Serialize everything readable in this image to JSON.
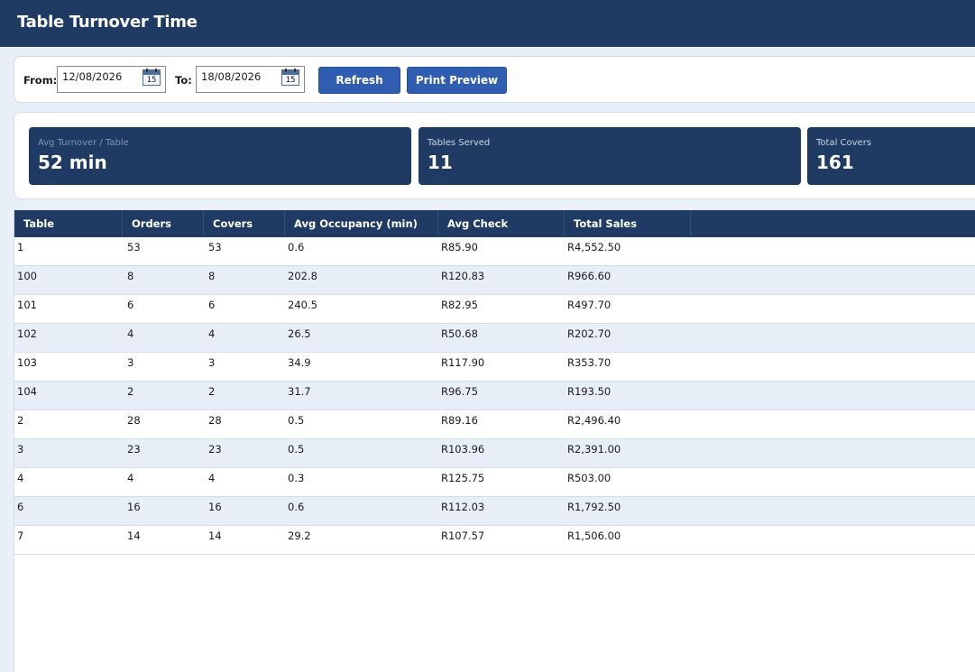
{
  "window": {
    "title": "Table Turnover Time"
  },
  "filters": {
    "from_label": "From:",
    "from_value": "12/08/2026",
    "to_label": "To:",
    "to_value": "18/08/2026",
    "calendar_day": "15",
    "refresh_label": "Refresh",
    "print_preview_label": "Print Preview"
  },
  "kpis": [
    {
      "label": "Avg Turnover / Table",
      "value": "52 min"
    },
    {
      "label": "Tables Served",
      "value": "11"
    },
    {
      "label": "Total Covers",
      "value": "161"
    }
  ],
  "table": {
    "columns": [
      "Table",
      "Orders",
      "Covers",
      "Avg Occupancy (min)",
      "Avg Check",
      "Total Sales"
    ],
    "rows": [
      [
        "1",
        "53",
        "53",
        "0.6",
        "R85.90",
        "R4,552.50"
      ],
      [
        "100",
        "8",
        "8",
        "202.8",
        "R120.83",
        "R966.60"
      ],
      [
        "101",
        "6",
        "6",
        "240.5",
        "R82.95",
        "R497.70"
      ],
      [
        "102",
        "4",
        "4",
        "26.5",
        "R50.68",
        "R202.70"
      ],
      [
        "103",
        "3",
        "3",
        "34.9",
        "R117.90",
        "R353.70"
      ],
      [
        "104",
        "2",
        "2",
        "31.7",
        "R96.75",
        "R193.50"
      ],
      [
        "2",
        "28",
        "28",
        "0.5",
        "R89.16",
        "R2,496.40"
      ],
      [
        "3",
        "23",
        "23",
        "0.5",
        "R103.96",
        "R2,391.00"
      ],
      [
        "4",
        "4",
        "4",
        "0.3",
        "R125.75",
        "R503.00"
      ],
      [
        "6",
        "16",
        "16",
        "0.6",
        "R112.03",
        "R1,792.50"
      ],
      [
        "7",
        "14",
        "14",
        "29.2",
        "R107.57",
        "R1,506.00"
      ]
    ]
  },
  "colors": {
    "header_navy": "#1f3b63",
    "button_blue": "#2f5db0",
    "alt_row": "#e8eef7",
    "background": "#e9eff6"
  }
}
